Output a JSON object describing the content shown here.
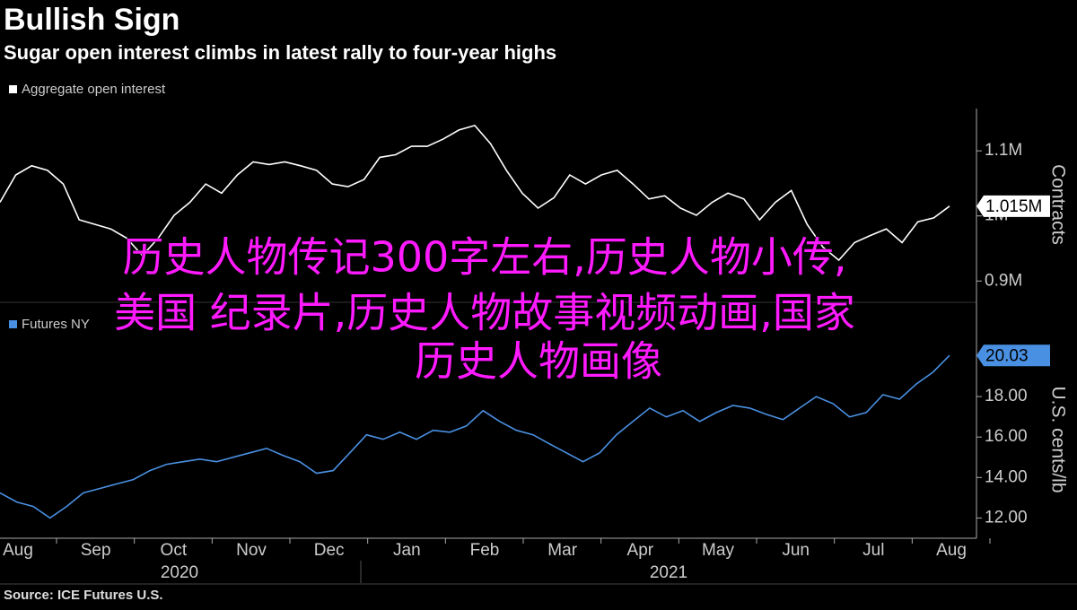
{
  "header": {
    "title": "Bullish Sign",
    "subtitle": "Sugar open interest climbs in latest rally to four-year highs"
  },
  "chart_data": [
    {
      "type": "line",
      "ylabel": "Contracts",
      "ylim": [
        870000,
        1165000
      ],
      "yticks": [
        {
          "value": 900000,
          "label": "0.9M"
        },
        {
          "value": 1000000,
          "label": "1M"
        },
        {
          "value": 1100000,
          "label": "1.1M"
        }
      ],
      "series": [
        {
          "name": "Aggregate open interest",
          "color": "#ffffff",
          "last_label": "1.015M",
          "values": [
            1021000,
            1063000,
            1077000,
            1070000,
            1049000,
            994000,
            987000,
            980000,
            966000,
            939000,
            966000,
            1001000,
            1021000,
            1049000,
            1035000,
            1063000,
            1083000,
            1079000,
            1083000,
            1077000,
            1070000,
            1049000,
            1045000,
            1056000,
            1090000,
            1094000,
            1107000,
            1107000,
            1118000,
            1132000,
            1139000,
            1111000,
            1070000,
            1035000,
            1012000,
            1028000,
            1063000,
            1049000,
            1063000,
            1070000,
            1049000,
            1026000,
            1031000,
            1012000,
            1001000,
            1021000,
            1035000,
            1026000,
            994000,
            1021000,
            1039000,
            987000,
            952000,
            932000,
            959000,
            970000,
            980000,
            959000,
            991000,
            997000,
            1015000
          ]
        }
      ]
    },
    {
      "type": "line",
      "ylabel": "U.S. cents/lb",
      "ylim": [
        11,
        20.75
      ],
      "yticks": [
        {
          "value": 12,
          "label": "12.00"
        },
        {
          "value": 14,
          "label": "14.00"
        },
        {
          "value": 16,
          "label": "16.00"
        },
        {
          "value": 18,
          "label": "18.00"
        }
      ],
      "series": [
        {
          "name": "Futures NY",
          "color": "#4a90e2",
          "last_label": "20.03",
          "values": [
            13.24,
            12.79,
            12.57,
            12.0,
            12.57,
            13.24,
            13.46,
            13.68,
            13.9,
            14.34,
            14.65,
            14.78,
            14.91,
            14.78,
            15.0,
            15.22,
            15.44,
            15.09,
            14.78,
            14.21,
            14.34,
            15.22,
            16.11,
            15.89,
            16.24,
            15.89,
            16.33,
            16.24,
            16.55,
            17.3,
            16.77,
            16.33,
            16.11,
            15.66,
            15.22,
            14.78,
            15.22,
            16.11,
            16.77,
            17.43,
            16.99,
            17.3,
            16.77,
            17.21,
            17.56,
            17.43,
            17.12,
            16.86,
            17.43,
            18.0,
            17.65,
            16.99,
            17.21,
            18.09,
            17.87,
            18.62,
            19.2,
            20.03
          ]
        }
      ]
    }
  ],
  "x_axis": {
    "months": [
      "Aug",
      "Sep",
      "Oct",
      "Nov",
      "Dec",
      "Jan",
      "Feb",
      "Mar",
      "Apr",
      "May",
      "Jun",
      "Jul",
      "Aug"
    ],
    "years": [
      "2020",
      "2021"
    ]
  },
  "source": "Source: ICE Futures U.S.",
  "overlay": [
    "历史人物传记300字左右,历史人物小传,",
    "美国 纪录片,历史人物故事视频动画,国家",
    "历史人物画像"
  ]
}
